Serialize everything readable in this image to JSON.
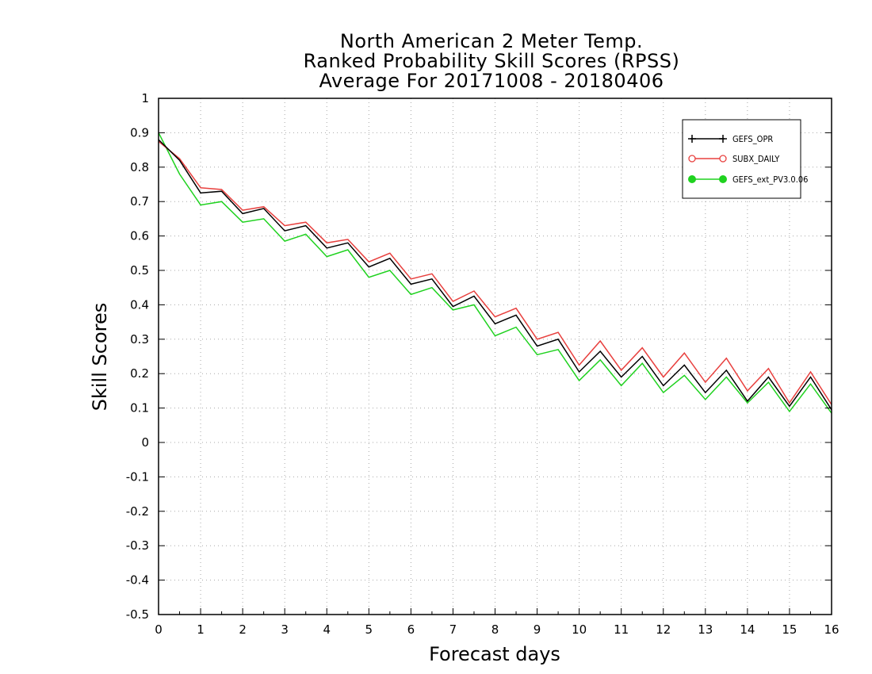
{
  "chart_data": {
    "type": "line",
    "title": [
      "North American 2 Meter Temp.",
      "Ranked Probability Skill Scores (RPSS)",
      "Average For 20171008 - 20180406"
    ],
    "xlabel": "Forecast days",
    "ylabel": "Skill Scores",
    "xlim": [
      0,
      16
    ],
    "ylim": [
      -0.5,
      1
    ],
    "xticks": [
      "0",
      "1",
      "2",
      "3",
      "4",
      "5",
      "6",
      "7",
      "8",
      "9",
      "10",
      "11",
      "12",
      "13",
      "14",
      "15",
      "16"
    ],
    "yticks": [
      "1",
      "0.9",
      "0.8",
      "0.7",
      "0.6",
      "0.5",
      "0.4",
      "0.3",
      "0.2",
      "0.1",
      "0",
      "-0.1",
      "-0.2",
      "-0.3",
      "-0.4",
      "-0.5"
    ],
    "grid": true,
    "legend_position": "top-right",
    "x": [
      0,
      0.5,
      1,
      1.5,
      2,
      2.5,
      3,
      3.5,
      4,
      4.5,
      5,
      5.5,
      6,
      6.5,
      7,
      7.5,
      8,
      8.5,
      9,
      9.5,
      10,
      10.5,
      11,
      11.5,
      12,
      12.5,
      13,
      13.5,
      14,
      14.5,
      15,
      15.5,
      16
    ],
    "series": [
      {
        "name": "GEFS_OPR",
        "color": "#000000",
        "marker": "plus",
        "values": [
          0.88,
          0.82,
          0.725,
          0.73,
          0.665,
          0.68,
          0.615,
          0.63,
          0.565,
          0.58,
          0.51,
          0.535,
          0.46,
          0.475,
          0.395,
          0.425,
          0.345,
          0.37,
          0.28,
          0.3,
          0.205,
          0.265,
          0.19,
          0.25,
          0.165,
          0.225,
          0.145,
          0.21,
          0.12,
          0.19,
          0.105,
          0.19,
          0.095
        ]
      },
      {
        "name": "SUBX_DAILY",
        "color": "#e8403e",
        "marker": "open-circle",
        "values": [
          0.875,
          0.825,
          0.74,
          0.735,
          0.675,
          0.685,
          0.63,
          0.64,
          0.58,
          0.59,
          0.525,
          0.55,
          0.475,
          0.49,
          0.41,
          0.44,
          0.365,
          0.39,
          0.3,
          0.32,
          0.225,
          0.295,
          0.21,
          0.275,
          0.19,
          0.26,
          0.175,
          0.245,
          0.15,
          0.215,
          0.115,
          0.205,
          0.11
        ]
      },
      {
        "name": "GEFS_ext_PV3.0.06",
        "color": "#1fd21f",
        "marker": "filled-circle",
        "values": [
          0.9,
          0.78,
          0.69,
          0.7,
          0.64,
          0.65,
          0.585,
          0.605,
          0.54,
          0.56,
          0.48,
          0.5,
          0.43,
          0.45,
          0.385,
          0.4,
          0.31,
          0.335,
          0.255,
          0.27,
          0.18,
          0.24,
          0.165,
          0.23,
          0.145,
          0.195,
          0.125,
          0.19,
          0.115,
          0.175,
          0.09,
          0.17,
          0.085
        ]
      }
    ]
  }
}
